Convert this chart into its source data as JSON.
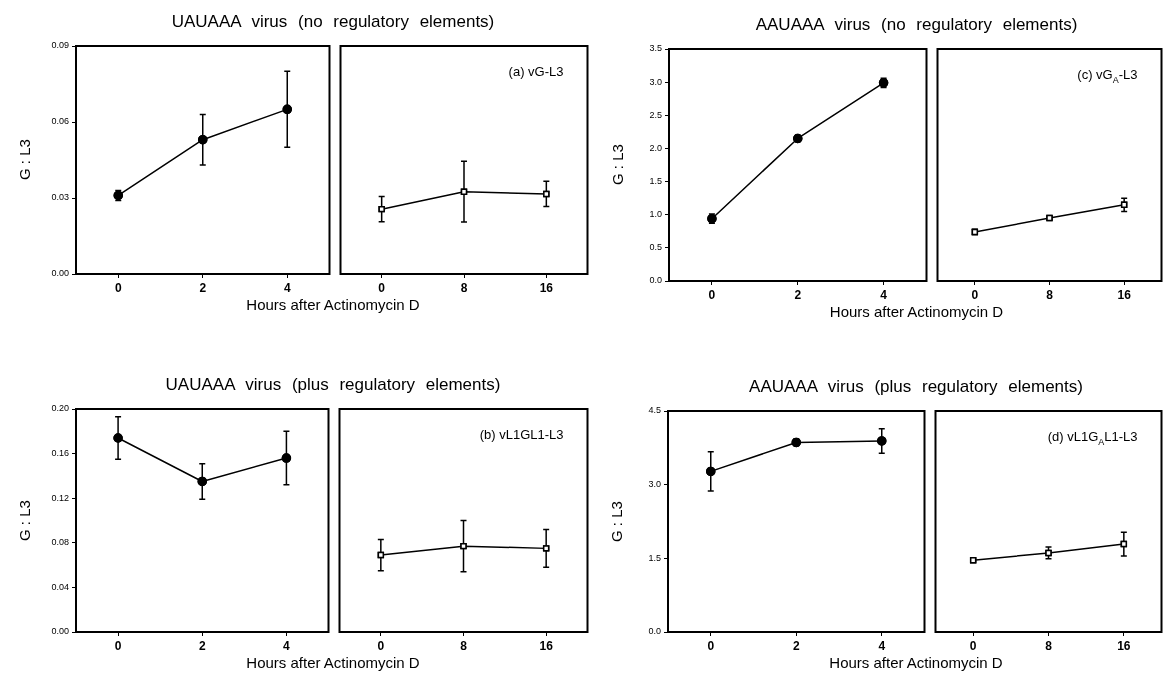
{
  "chart_data": [
    {
      "type": "line",
      "title": "UAUAAA virus (no regulatory elements)",
      "xlabel": "Hours after Actinomycin D",
      "ylabel": "G : L3",
      "x": [
        0,
        2,
        4
      ],
      "values": [
        0.031,
        0.053,
        0.065
      ],
      "errors": [
        0.002,
        0.01,
        0.015
      ],
      "color": "#000000",
      "marker": "circle",
      "xlim": [
        -1,
        5
      ],
      "xticks": [
        0,
        2,
        4
      ],
      "ylim": [
        0,
        0.09
      ],
      "yticks": [
        {
          "value": 0,
          "label": "0.00"
        },
        0.03,
        0.06,
        0.09
      ]
    },
    {
      "type": "line",
      "annotations": [
        "(a) vG-L3"
      ],
      "x": [
        0,
        8,
        16
      ],
      "values": [
        0.0256,
        0.0325,
        0.0316
      ],
      "errors": [
        0.005,
        0.012,
        0.005
      ],
      "color": "#000000",
      "marker": "square",
      "xlim": [
        -4,
        20
      ],
      "xticks": [
        0,
        8,
        16
      ],
      "ylim": [
        0,
        0.09
      ],
      "tick_labels": "x"
    },
    {
      "type": "line",
      "title": "AAUAAA virus (no regulatory elements)",
      "xlabel": "Hours after Actinomycin D",
      "ylabel": "G : L3",
      "x": [
        0,
        2,
        4
      ],
      "values": [
        0.94,
        2.15,
        2.99
      ],
      "errors": [
        0.07,
        0.05,
        0.07
      ],
      "color": "#000000",
      "marker": "circle",
      "xlim": [
        -1,
        5
      ],
      "xticks": [
        0,
        2,
        4
      ],
      "ylim": [
        0,
        3.5
      ],
      "yticks": [
        {
          "value": 0,
          "label": "0.0"
        },
        0.5,
        {
          "value": 1,
          "label": "1.0"
        },
        1.5,
        {
          "value": 2,
          "label": "2.0"
        },
        2.5,
        {
          "value": 3,
          "label": "3.0"
        },
        3.5
      ]
    },
    {
      "type": "line",
      "annotations": [
        "(c) vG$_{A}$-L3"
      ],
      "x": [
        0,
        8,
        16
      ],
      "values": [
        0.74,
        0.95,
        1.15
      ],
      "errors": [
        0.04,
        0.02,
        0.1
      ],
      "color": "#000000",
      "marker": "square",
      "xlim": [
        -4,
        20
      ],
      "xticks": [
        0,
        8,
        16
      ],
      "ylim": [
        0,
        3.5
      ],
      "tick_labels": "x"
    },
    {
      "type": "line",
      "title": "UAUAAA virus (plus regulatory elements)",
      "xlabel": "Hours after Actinomycin D",
      "ylabel": "G : L3",
      "x": [
        0,
        2,
        4
      ],
      "values": [
        0.174,
        0.135,
        0.156
      ],
      "errors": [
        0.019,
        0.016,
        0.024
      ],
      "color": "#000000",
      "marker": "circle",
      "xlim": [
        -1,
        5
      ],
      "xticks": [
        0,
        2,
        4
      ],
      "ylim": [
        0,
        0.2
      ],
      "yticks": [
        {
          "value": 0,
          "label": "0.00"
        },
        0.04,
        0.08,
        0.12,
        0.16,
        {
          "value": 0.2,
          "label": "0.20"
        }
      ]
    },
    {
      "type": "line",
      "annotations": [
        "(b) vL1GL1-L3"
      ],
      "x": [
        0,
        8,
        16
      ],
      "values": [
        0.069,
        0.077,
        0.075
      ],
      "errors": [
        0.014,
        0.023,
        0.017
      ],
      "color": "#000000",
      "marker": "square",
      "xlim": [
        -4,
        20
      ],
      "xticks": [
        0,
        8,
        16
      ],
      "ylim": [
        0,
        0.2
      ],
      "tick_labels": "x"
    },
    {
      "type": "line",
      "title": "AAUAAA virus (plus regulatory elements)",
      "xlabel": "Hours after Actinomycin D",
      "ylabel": "G : L3",
      "x": [
        0,
        2,
        4
      ],
      "values": [
        3.27,
        3.86,
        3.89
      ],
      "errors": [
        0.4,
        0.07,
        0.25
      ],
      "color": "#000000",
      "marker": "circle",
      "xlim": [
        -1,
        5
      ],
      "xticks": [
        0,
        2,
        4
      ],
      "ylim": [
        0,
        4.5
      ],
      "yticks": [
        {
          "value": 0,
          "label": "0.0"
        },
        1.5,
        {
          "value": 3,
          "label": "3.0"
        },
        4.5
      ]
    },
    {
      "type": "line",
      "annotations": [
        "(d) vL1G$_{A}$L1-L3"
      ],
      "x": [
        0,
        8,
        16
      ],
      "values": [
        1.46,
        1.61,
        1.79
      ],
      "errors": [
        0.03,
        0.12,
        0.24
      ],
      "color": "#000000",
      "marker": "square",
      "xlim": [
        -4,
        20
      ],
      "xticks": [
        0,
        8,
        16
      ],
      "ylim": [
        0,
        4.5
      ],
      "tick_labels": "x"
    }
  ]
}
